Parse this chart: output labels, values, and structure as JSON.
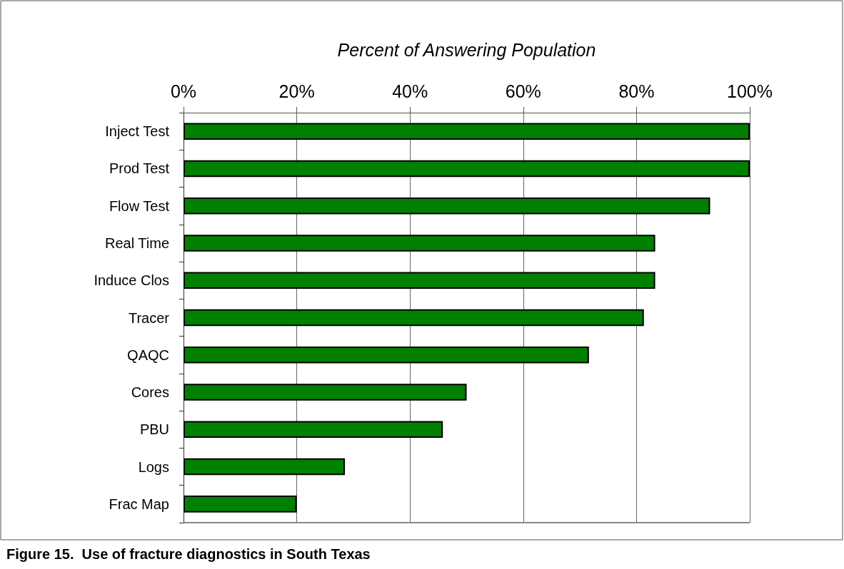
{
  "chart_data": {
    "type": "bar",
    "orientation": "horizontal",
    "title": "Figure 15.  Use of fracture diagnostics in South Texas",
    "xlabel": "Percent of Answering Population",
    "categories": [
      "Inject Test",
      "Prod Test",
      "Flow Test",
      "Real Time",
      "Induce Clos",
      "Tracer",
      "QAQC",
      "Cores",
      "PBU",
      "Logs",
      "Frac Map"
    ],
    "values": [
      100,
      100,
      93,
      83.3,
      83.3,
      81.3,
      71.6,
      50,
      45.8,
      28.5,
      20
    ],
    "color": "#008000",
    "xlim": [
      0,
      100
    ],
    "xticks": [
      {
        "value": 0,
        "label": "0%"
      },
      {
        "value": 20,
        "label": "20%"
      },
      {
        "value": 40,
        "label": "40%"
      },
      {
        "value": 60,
        "label": "60%"
      },
      {
        "value": 80,
        "label": "80%"
      },
      {
        "value": 100,
        "label": "100%"
      }
    ],
    "grid": "x"
  }
}
